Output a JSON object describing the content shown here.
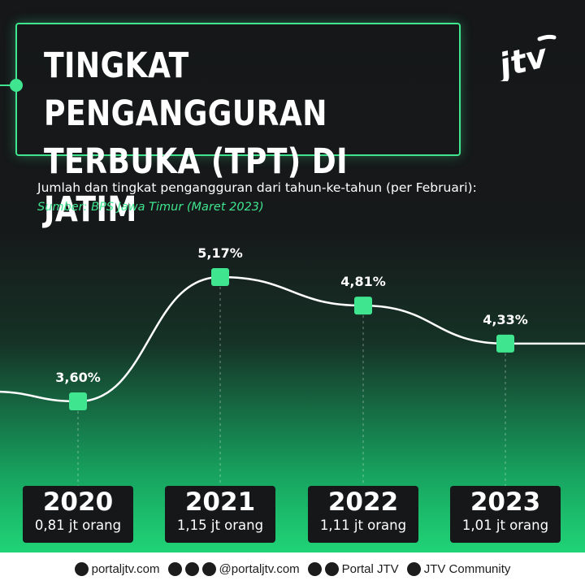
{
  "title_line1": "TINGKAT PENGANGGURAN",
  "title_line2": "TERBUKA (TPT) DI JATIM",
  "logo_text": "jtv",
  "subtitle": "Jumlah dan tingkat pengangguran dari tahun-ke-tahun (per Februari):",
  "source": "Sumber: BPS Jawa Timur (Maret 2023)",
  "colors": {
    "accent": "#3fe58f",
    "background": "#151719",
    "line": "#ffffff"
  },
  "chart_data": {
    "type": "line",
    "categories": [
      "2020",
      "2021",
      "2022",
      "2023"
    ],
    "values": [
      3.6,
      5.17,
      4.81,
      4.33
    ],
    "value_labels": [
      "3,60%",
      "5,17%",
      "4,81%",
      "4,33%"
    ],
    "counts": [
      "0,81 jt orang",
      "1,15 jt orang",
      "1,11 jt orang",
      "1,01 jt orang"
    ]
  },
  "footer": {
    "website": "portaljtv.com",
    "social_handle": "@portaljtv.com",
    "page": "Portal JTV",
    "community": "JTV Community",
    "icons": [
      "globe-icon",
      "instagram-icon",
      "twitter-icon",
      "tiktok-icon",
      "facebook-icon",
      "youtube-icon",
      "telegram-icon"
    ]
  }
}
